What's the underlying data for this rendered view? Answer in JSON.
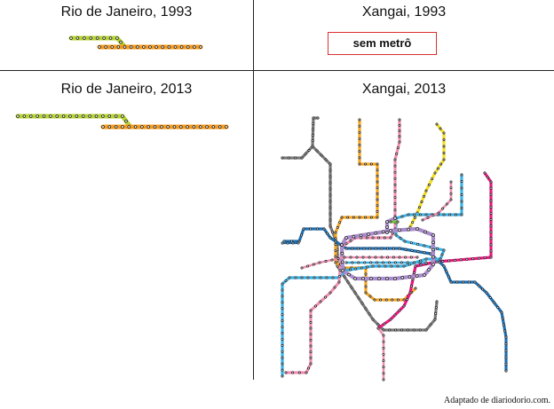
{
  "panels": {
    "rio_1993": {
      "title": "Rio de Janeiro, 1993"
    },
    "shanghai_1993": {
      "title": "Xangai, 1993",
      "note": "sem metrô"
    },
    "rio_2013": {
      "title": "Rio de Janeiro, 2013"
    },
    "shanghai_2013": {
      "title": "Xangai, 2013"
    }
  },
  "credit": "Adaptado de diariodorio.com.",
  "colors": {
    "rio_line_1": "#b5d334",
    "rio_line_2": "#f39a1e",
    "sh_dark_blue": "#1f6fb2",
    "sh_light_blue": "#3db3e6",
    "sh_orange": "#f5a623",
    "sh_yellow": "#f2dd20",
    "sh_pink": "#ef8fb3",
    "sh_magenta": "#e6197f",
    "sh_purple": "#a98ccb",
    "sh_gray": "#7a7a7a",
    "sh_green": "#7cc142"
  }
}
